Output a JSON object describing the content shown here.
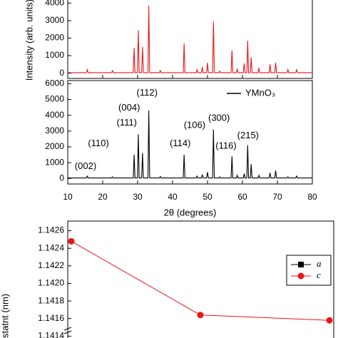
{
  "chart_data": [
    {
      "type": "line",
      "ylabel": "Intensity (arb. units)",
      "xlim": [
        10,
        80
      ],
      "ylim": [
        -300,
        4500
      ],
      "yticks": [
        0,
        1000,
        2000,
        3000,
        4000
      ],
      "xticks": [
        10,
        20,
        30,
        40,
        50,
        60,
        70,
        80
      ],
      "show_xtick_labels": false,
      "series": [
        {
          "color": "#e8161b",
          "x": [
            10,
            15.35,
            15.6,
            15.85,
            22.55,
            22.8,
            23.05,
            28.75,
            29,
            29.25,
            29.95,
            30.2,
            30.45,
            31.15,
            31.4,
            31.65,
            32.95,
            33.2,
            33.45,
            36.25,
            36.5,
            36.75,
            43.05,
            43.3,
            43.55,
            46.75,
            47,
            47.25,
            48.25,
            48.5,
            48.75,
            49.75,
            50,
            50.25,
            51.45,
            51.7,
            51.95,
            53.25,
            53.5,
            53.75,
            56.75,
            57,
            57.25,
            58.25,
            58.5,
            58.75,
            60.25,
            60.5,
            60.75,
            61.25,
            61.5,
            61.75,
            62.25,
            62.5,
            62.75,
            64.45,
            64.7,
            64.95,
            67.65,
            67.9,
            68.15,
            69.25,
            69.5,
            69.75,
            72.75,
            73,
            73.25,
            75.25,
            75.5,
            75.75,
            80
          ],
          "values": [
            30,
            30,
            200,
            30,
            30,
            150,
            30,
            30,
            1450,
            30,
            30,
            2450,
            30,
            30,
            1500,
            30,
            30,
            3850,
            30,
            30,
            150,
            30,
            30,
            1700,
            30,
            30,
            200,
            30,
            30,
            350,
            30,
            30,
            600,
            30,
            30,
            2950,
            30,
            30,
            120,
            30,
            30,
            1300,
            30,
            30,
            250,
            30,
            30,
            550,
            30,
            30,
            1850,
            30,
            30,
            900,
            30,
            30,
            300,
            30,
            30,
            500,
            30,
            30,
            600,
            30,
            30,
            200,
            30,
            30,
            200,
            30,
            30
          ]
        }
      ]
    },
    {
      "type": "line",
      "xlabel": "2θ (degrees)",
      "xlim": [
        10,
        80
      ],
      "ylim": [
        -350,
        6200
      ],
      "yticks": [
        0,
        1000,
        2000,
        3000,
        4000,
        5000,
        6000
      ],
      "xticks": [
        10,
        20,
        30,
        40,
        50,
        60,
        70,
        80
      ],
      "show_xtick_labels": true,
      "legend": "upper right",
      "series": [
        {
          "name": "YMnO₃",
          "color": "#000000",
          "x": [
            10,
            15.35,
            15.6,
            15.85,
            22.55,
            22.8,
            23.05,
            28.75,
            29,
            29.25,
            29.95,
            30.2,
            30.45,
            31.15,
            31.4,
            31.65,
            32.95,
            33.2,
            33.45,
            36.25,
            36.5,
            36.75,
            43.05,
            43.3,
            43.55,
            46.75,
            47,
            47.25,
            48.25,
            48.5,
            48.75,
            49.75,
            50,
            50.25,
            51.45,
            51.7,
            51.95,
            53.25,
            53.5,
            53.75,
            56.75,
            57,
            57.25,
            58.25,
            58.5,
            58.75,
            60.25,
            60.5,
            60.75,
            61.25,
            61.5,
            61.75,
            62.25,
            62.5,
            62.75,
            64.45,
            64.7,
            64.95,
            67.65,
            67.9,
            68.15,
            69.25,
            69.5,
            69.75,
            72.75,
            73,
            73.25,
            75.25,
            75.5,
            75.75,
            80
          ],
          "values": [
            30,
            30,
            150,
            30,
            30,
            100,
            30,
            30,
            1500,
            30,
            30,
            2800,
            30,
            30,
            1600,
            30,
            30,
            4300,
            30,
            30,
            120,
            30,
            30,
            1500,
            30,
            30,
            150,
            30,
            30,
            250,
            30,
            30,
            400,
            30,
            30,
            3100,
            30,
            30,
            100,
            30,
            30,
            1400,
            30,
            30,
            200,
            30,
            30,
            300,
            30,
            30,
            2100,
            30,
            30,
            900,
            30,
            30,
            200,
            30,
            30,
            350,
            30,
            30,
            500,
            30,
            30,
            100,
            30,
            30,
            150,
            30,
            30
          ]
        }
      ],
      "annotations": [
        {
          "text": "(002)",
          "x": 15.1,
          "y": 750
        },
        {
          "text": "(110)",
          "x": 18.8,
          "y": 2200
        },
        {
          "text": "(111)",
          "x": 26.9,
          "y": 3500
        },
        {
          "text": "(004)",
          "x": 27.6,
          "y": 4450
        },
        {
          "text": "(112)",
          "x": 32.7,
          "y": 5400
        },
        {
          "text": "(114)",
          "x": 42.2,
          "y": 2200
        },
        {
          "text": "(106)",
          "x": 46.3,
          "y": 3350
        },
        {
          "text": "(300)",
          "x": 53.3,
          "y": 3800
        },
        {
          "text": "(116)",
          "x": 55.3,
          "y": 2050
        },
        {
          "text": "(215)",
          "x": 61.6,
          "y": 2700
        }
      ]
    },
    {
      "type": "point-line",
      "ylabel": "statnt (nm)",
      "categories": [
        null,
        null,
        null
      ],
      "ylim": [
        1.14133,
        1.14271
      ],
      "yticks": [
        {
          "value": 1.1414,
          "label": "1.1414"
        },
        {
          "value": 1.1416,
          "label": "1.1416"
        },
        {
          "value": 1.1418,
          "label": "1.1418"
        },
        {
          "value": 1.142,
          "label": "1.1420"
        },
        {
          "value": 1.1422,
          "label": "1.1422"
        },
        {
          "value": 1.1424,
          "label": "1.1424"
        },
        {
          "value": 1.1426,
          "label": "1.1426"
        }
      ],
      "legend": "upper right",
      "series": [
        {
          "name": "a",
          "color": "#000000",
          "marker": "square",
          "values": [
            null,
            null,
            null
          ]
        },
        {
          "name": "c",
          "color": "#e8161b",
          "marker": "circle",
          "values": [
            1.14248,
            1.14164,
            1.14158
          ]
        }
      ]
    }
  ]
}
